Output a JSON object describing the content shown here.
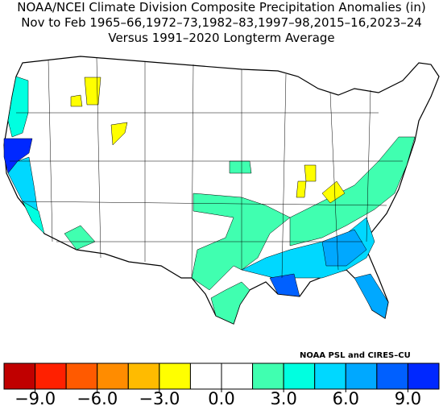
{
  "title": "NOAA/NCEI Climate Division Composite Precipitation Anomalies (in)",
  "subtitle": "Nov to Feb  1965–66,1972–73,1982–83,1997–98,2015–16,2023–24",
  "subtitle2": "Versus 1991–2020 Longterm Average",
  "credit": "NOAA PSL and CIRES–CU",
  "colorbar": {
    "lim": [
      -10.5,
      10.5
    ],
    "colors": [
      "#c00000",
      "#ff2000",
      "#ff5a00",
      "#ff8c00",
      "#ffbb00",
      "#ffff00",
      "#ffffff",
      "#ffffff",
      "#40ffb0",
      "#00ffe0",
      "#00d8ff",
      "#00a8ff",
      "#0060ff",
      "#0028ff"
    ],
    "ticks": [
      {
        "value": -9,
        "label": "−9.0"
      },
      {
        "value": -6,
        "label": "−6.0"
      },
      {
        "value": -3,
        "label": "−3.0"
      },
      {
        "value": 0,
        "label": "0.0"
      },
      {
        "value": 3,
        "label": "3.0"
      },
      {
        "value": 6,
        "label": "6.0"
      },
      {
        "value": 9,
        "label": "9.0"
      }
    ]
  }
}
